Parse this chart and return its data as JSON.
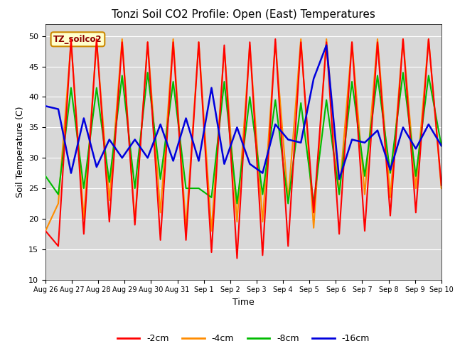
{
  "title": "Tonzi Soil CO2 Profile: Open (East) Temperatures",
  "xlabel": "Time",
  "ylabel": "Soil Temperature (C)",
  "ylim": [
    10,
    52
  ],
  "yticks": [
    10,
    15,
    20,
    25,
    30,
    35,
    40,
    45,
    50
  ],
  "legend_label": "TZ_soilco2",
  "series_labels": [
    "-2cm",
    "-4cm",
    "-8cm",
    "-16cm"
  ],
  "series_colors": [
    "#ff0000",
    "#ff8c00",
    "#00bb00",
    "#0000dd"
  ],
  "background_color": "#d8d8d8",
  "x_tick_labels": [
    "Aug 26",
    "Aug 27",
    "Aug 28",
    "Aug 29",
    "Aug 30",
    "Aug 31",
    "Sep 1",
    "Sep 2",
    "Sep 3",
    "Sep 4",
    "Sep 5",
    "Sep 6",
    "Sep 7",
    "Sep 8",
    "Sep 9",
    "Sep 10"
  ],
  "data_2cm": [
    18.0,
    15.5,
    49.5,
    17.5,
    49.5,
    19.5,
    49.0,
    19.0,
    49.0,
    16.5,
    49.0,
    16.5,
    49.0,
    14.5,
    48.5,
    13.5,
    49.0,
    14.0,
    49.5,
    15.5,
    49.0,
    21.0,
    49.0,
    17.5,
    49.0,
    18.0,
    49.0,
    20.5,
    49.5,
    21.0,
    49.5,
    25.5
  ],
  "data_4cm": [
    18.0,
    22.5,
    49.0,
    20.0,
    49.0,
    23.0,
    49.5,
    19.5,
    49.0,
    21.0,
    49.5,
    18.5,
    49.0,
    18.0,
    48.0,
    19.5,
    48.5,
    19.5,
    49.0,
    23.0,
    49.5,
    18.5,
    49.5,
    24.0,
    49.0,
    24.0,
    49.5,
    23.5,
    49.5,
    25.0,
    49.5,
    25.0
  ],
  "data_8cm": [
    27.0,
    24.0,
    41.5,
    25.0,
    41.5,
    26.0,
    43.5,
    25.0,
    44.0,
    26.5,
    42.5,
    25.0,
    25.0,
    23.5,
    42.5,
    22.5,
    40.0,
    24.0,
    39.5,
    22.5,
    39.0,
    22.5,
    39.5,
    24.0,
    42.5,
    27.0,
    43.5,
    27.5,
    44.0,
    27.0,
    43.5,
    32.0
  ],
  "data_16cm": [
    38.5,
    38.0,
    27.5,
    36.5,
    28.5,
    33.0,
    30.0,
    33.0,
    30.0,
    35.5,
    29.5,
    36.5,
    29.5,
    41.5,
    29.0,
    35.0,
    29.0,
    27.5,
    35.5,
    33.0,
    32.5,
    43.0,
    48.5,
    26.5,
    33.0,
    32.5,
    34.5,
    28.0,
    35.0,
    31.5,
    35.5,
    32.0
  ],
  "n_days": 15
}
